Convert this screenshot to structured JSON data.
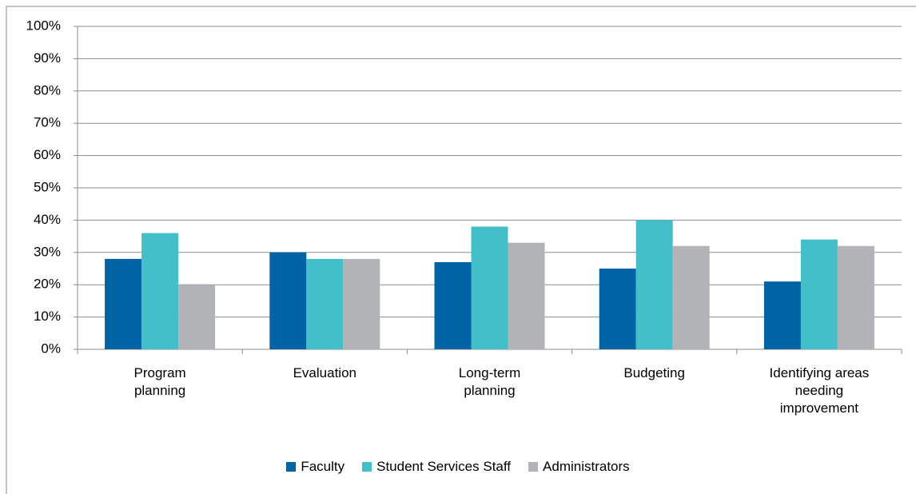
{
  "chart_data": {
    "type": "bar",
    "categories": [
      "Program planning",
      "Evaluation",
      "Long-term planning",
      "Budgeting",
      "Identifying areas needing improvement"
    ],
    "series": [
      {
        "name": "Faculty",
        "color": "#0063a3",
        "values": [
          28,
          30,
          27,
          25,
          21
        ]
      },
      {
        "name": "Student Services Staff",
        "color": "#43bfca",
        "values": [
          36,
          28,
          38,
          40,
          34
        ]
      },
      {
        "name": "Administrators",
        "color": "#b2b3b6",
        "values": [
          20,
          28,
          33,
          32,
          32
        ]
      }
    ],
    "ylim": [
      0,
      100
    ],
    "yticks": [
      {
        "value": 0,
        "label": "0%"
      },
      {
        "value": 10,
        "label": "10%"
      },
      {
        "value": 20,
        "label": "20%"
      },
      {
        "value": 30,
        "label": "30%"
      },
      {
        "value": 40,
        "label": "40%"
      },
      {
        "value": 50,
        "label": "50%"
      },
      {
        "value": 60,
        "label": "60%"
      },
      {
        "value": 70,
        "label": "70%"
      },
      {
        "value": 80,
        "label": "80%"
      },
      {
        "value": 90,
        "label": "90%"
      },
      {
        "value": 100,
        "label": "100%"
      }
    ],
    "grid": true,
    "legend": "bottom"
  }
}
